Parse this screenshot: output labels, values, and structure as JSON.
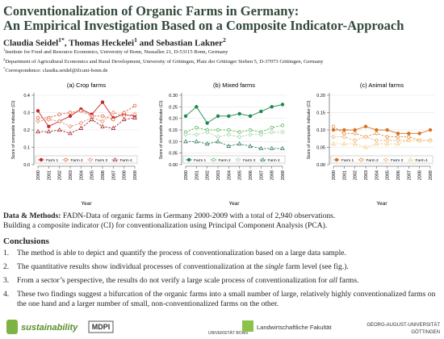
{
  "header": {
    "title_lines": [
      "Conventionalization of Organic Farms in Germany:",
      "An Empirical Investigation Based on a Composite Indicator-Approach"
    ],
    "authors": [
      {
        "name": "Claudia Seidel",
        "sup": "1*"
      },
      {
        "name": ", Thomas Heckelei",
        "sup": "1"
      },
      {
        "name": " and Sebastian Lakner",
        "sup": "2"
      }
    ],
    "affiliations": [
      {
        "sup": "1",
        "text": "Institute for Food and Resource Economics, University of Bonn, Nussallee 21, D-53115 Bonn, Germany"
      },
      {
        "sup": "2",
        "text": "Department of Agricultural Economics and Rural Development, University of Göttingen, Platz der Göttinger Sieben 5, D-37073 Göttingen, Germany"
      },
      {
        "sup": "*",
        "text": "Correspondence: claudia.seidel@ilr.uni-bonn.de"
      }
    ]
  },
  "chart_data": [
    {
      "type": "line",
      "title": "(a) Crop farms",
      "x_label": "Year",
      "y_label": "Score of composite indicator (CI)",
      "categories": [
        "2000",
        "2001",
        "2002",
        "2003",
        "2004",
        "2005",
        "2006",
        "2007",
        "2008",
        "2009"
      ],
      "ylim": [
        0,
        0.4
      ],
      "yticks": [
        {
          "value": 0,
          "label": "0.0"
        },
        0.1,
        0.2,
        0.3,
        0.4
      ],
      "grid": true,
      "legend": "bottom",
      "series": [
        {
          "name": "Farm 1",
          "color": "#c62828",
          "marker": "circle",
          "dashed": false,
          "values": [
            0.31,
            0.22,
            0.25,
            0.28,
            0.32,
            0.29,
            0.36,
            0.27,
            0.29,
            0.28
          ]
        },
        {
          "name": "Farm 2",
          "color": "#e0603a",
          "marker": "circle-open",
          "dashed": true,
          "values": [
            0.27,
            0.27,
            0.29,
            0.3,
            0.31,
            0.28,
            0.28,
            0.26,
            0.3,
            0.34
          ]
        },
        {
          "name": "Farm 3",
          "color": "#ec8a74",
          "marker": "diamond",
          "dashed": true,
          "values": [
            0.25,
            0.26,
            0.25,
            0.22,
            0.24,
            0.27,
            0.25,
            0.3,
            0.28,
            0.29
          ]
        },
        {
          "name": "Farm 4",
          "color": "#a52a2a",
          "marker": "triangle",
          "dashed": true,
          "values": [
            0.19,
            0.19,
            0.2,
            0.18,
            0.21,
            0.26,
            0.22,
            0.21,
            0.26,
            0.27
          ]
        }
      ]
    },
    {
      "type": "line",
      "title": "(b) Mixed farms",
      "x_label": "Year",
      "y_label": "Score of composite indicator (CI)",
      "categories": [
        "2000",
        "2001",
        "2002",
        "2003",
        "2004",
        "2005",
        "2006",
        "2007",
        "2008",
        "2009"
      ],
      "ylim": [
        0,
        0.3
      ],
      "yticks": [
        {
          "value": 0,
          "label": "0.00"
        },
        {
          "value": 0.05,
          "label": "0.05"
        },
        {
          "value": 0.1,
          "label": "0.10"
        },
        {
          "value": 0.15,
          "label": "0.15"
        },
        {
          "value": 0.2,
          "label": "0.20"
        },
        {
          "value": 0.25,
          "label": "0.25"
        },
        {
          "value": 0.3,
          "label": "0.30"
        }
      ],
      "grid": true,
      "legend": "bottom",
      "series": [
        {
          "name": "Farm 1",
          "color": "#1b8a4a",
          "marker": "circle",
          "dashed": false,
          "values": [
            0.21,
            0.25,
            0.18,
            0.21,
            0.21,
            0.22,
            0.21,
            0.23,
            0.25,
            0.26
          ]
        },
        {
          "name": "Farm 2",
          "color": "#5cb85c",
          "marker": "circle-open",
          "dashed": true,
          "values": [
            0.14,
            0.16,
            0.15,
            0.15,
            0.15,
            0.14,
            0.15,
            0.14,
            0.16,
            0.17
          ]
        },
        {
          "name": "Farm 3",
          "color": "#a5d6a7",
          "marker": "diamond",
          "dashed": true,
          "values": [
            0.13,
            0.13,
            0.14,
            0.12,
            0.13,
            0.12,
            0.13,
            0.13,
            0.14,
            0.14
          ]
        },
        {
          "name": "Farm 4",
          "color": "#2e7d5b",
          "marker": "triangle",
          "dashed": true,
          "values": [
            0.1,
            0.1,
            0.09,
            0.1,
            0.08,
            0.09,
            0.08,
            0.07,
            0.07,
            0.07
          ]
        }
      ]
    },
    {
      "type": "line",
      "title": "(c) Animal farms",
      "x_label": "Year",
      "y_label": "Score of composite indicator (CI)",
      "categories": [
        "2000",
        "2001",
        "2002",
        "2003",
        "2004",
        "2005",
        "2006",
        "2007",
        "2008",
        "2009"
      ],
      "ylim": [
        0,
        0.2
      ],
      "yticks": [
        {
          "value": 0,
          "label": "0.00"
        },
        {
          "value": 0.05,
          "label": "0.05"
        },
        {
          "value": 0.1,
          "label": "0.10"
        },
        {
          "value": 0.15,
          "label": "0.15"
        },
        {
          "value": 0.2,
          "label": "0.20"
        }
      ],
      "grid": true,
      "legend": "bottom",
      "series": [
        {
          "name": "Farm 1",
          "color": "#d9701c",
          "marker": "circle",
          "dashed": false,
          "values": [
            0.1,
            0.1,
            0.1,
            0.11,
            0.1,
            0.1,
            0.09,
            0.09,
            0.09,
            0.1
          ]
        },
        {
          "name": "Farm 2",
          "color": "#e08b3a",
          "marker": "circle-open",
          "dashed": true,
          "values": [
            0.11,
            0.09,
            0.09,
            0.08,
            0.09,
            0.08,
            0.08,
            0.08,
            0.07,
            0.07
          ]
        },
        {
          "name": "Farm 3",
          "color": "#efb27a",
          "marker": "diamond",
          "dashed": true,
          "values": [
            0.08,
            0.08,
            0.07,
            0.08,
            0.07,
            0.07,
            0.07,
            0.07,
            0.07,
            0.07
          ]
        },
        {
          "name": "Farm 4",
          "color": "#f3cf80",
          "marker": "triangle",
          "dashed": true,
          "values": [
            0.06,
            0.06,
            0.06,
            0.05,
            0.06,
            0.06,
            0.06,
            0.07,
            0.07,
            0.07
          ]
        }
      ]
    }
  ],
  "methods": {
    "heading": "Data & Methods:",
    "lines": [
      "FADN-Data of organic farms in Germany 2000-2009 with a total of 2,940 observations.",
      "Building a composite indicator (CI) for conventionalization using Principal Component Analysis (PCA)."
    ]
  },
  "conclusions": {
    "heading": "Conclusions",
    "items": [
      {
        "number": "1.",
        "parts": [
          "The method is able to depict and quantify the process of conventionalization based on a large data sample."
        ]
      },
      {
        "number": "2.",
        "parts": [
          "The quantitative results show individual processes of conventionalization at the ",
          "single",
          " farm level (see fig.)."
        ]
      },
      {
        "number": "3.",
        "parts": [
          "From a sector’s perspective, the results do not verify a large scale process of conventionalization for ",
          "all",
          " farms."
        ]
      },
      {
        "number": "4.",
        "parts": [
          "These two findings suggest a bifurcation of the organic farms into a small number of large, relatively highly conventionalized farms on the one hand and a larger number of small, non-conventionalized farms on the other."
        ]
      }
    ]
  },
  "footer": {
    "logos": [
      "sustainability",
      "MDPI",
      "UNIVERSITÄT BONN",
      "Landwirtschaftliche Fakultät",
      "GEORG-AUGUST-UNIVERSITÄT",
      "GÖTTINGEN"
    ]
  }
}
